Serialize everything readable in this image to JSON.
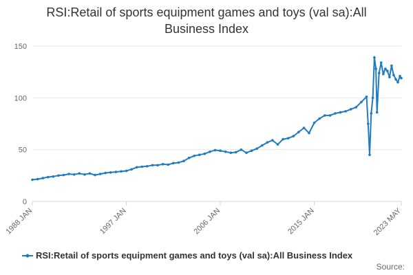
{
  "chart_data": {
    "type": "line",
    "title": "RSI:Retail of sports equipment games and toys (val sa):All Business Index",
    "xlabel": "",
    "ylabel": "",
    "ylim": [
      0,
      150
    ],
    "yticks": [
      0,
      50,
      100,
      150
    ],
    "xlim": [
      1988.0,
      2023.33
    ],
    "xticks": [
      {
        "label": "1988 JAN",
        "value": 1988.0
      },
      {
        "label": "1997 JAN",
        "value": 1997.0
      },
      {
        "label": "2006 JAN",
        "value": 2006.0
      },
      {
        "label": "2015 JAN",
        "value": 2015.0
      },
      {
        "label": "2023 MAY",
        "value": 2023.33
      }
    ],
    "color": "#1f7bc1",
    "grid": true,
    "legend_position": "bottom",
    "series": [
      {
        "name": "RSI:Retail of sports equipment games and toys (val sa):All Business Index",
        "points": [
          [
            1988.0,
            21
          ],
          [
            1988.5,
            21.5
          ],
          [
            1989.0,
            22.5
          ],
          [
            1989.5,
            23.5
          ],
          [
            1990.0,
            24
          ],
          [
            1990.5,
            25
          ],
          [
            1991.0,
            25.5
          ],
          [
            1991.5,
            26.5
          ],
          [
            1992.0,
            26
          ],
          [
            1992.5,
            27
          ],
          [
            1993.0,
            26
          ],
          [
            1993.5,
            27
          ],
          [
            1994.0,
            25.5
          ],
          [
            1994.5,
            26.5
          ],
          [
            1995.0,
            27.5
          ],
          [
            1995.5,
            28
          ],
          [
            1996.0,
            28.5
          ],
          [
            1996.5,
            29
          ],
          [
            1997.0,
            29.5
          ],
          [
            1997.5,
            31
          ],
          [
            1998.0,
            33
          ],
          [
            1998.5,
            33.5
          ],
          [
            1999.0,
            34
          ],
          [
            1999.5,
            35
          ],
          [
            2000.0,
            35
          ],
          [
            2000.5,
            36
          ],
          [
            2001.0,
            35.5
          ],
          [
            2001.5,
            37
          ],
          [
            2002.0,
            37.5
          ],
          [
            2002.5,
            39
          ],
          [
            2003.0,
            42
          ],
          [
            2003.5,
            44
          ],
          [
            2004.0,
            45
          ],
          [
            2004.5,
            46
          ],
          [
            2005.0,
            48
          ],
          [
            2005.5,
            49.5
          ],
          [
            2006.0,
            49
          ],
          [
            2006.5,
            48
          ],
          [
            2007.0,
            47
          ],
          [
            2007.5,
            47.5
          ],
          [
            2008.0,
            50
          ],
          [
            2008.5,
            47
          ],
          [
            2009.0,
            49
          ],
          [
            2009.5,
            51
          ],
          [
            2010.0,
            54
          ],
          [
            2010.5,
            57
          ],
          [
            2011.0,
            59
          ],
          [
            2011.5,
            55
          ],
          [
            2012.0,
            60
          ],
          [
            2012.5,
            61
          ],
          [
            2013.0,
            63
          ],
          [
            2013.5,
            67
          ],
          [
            2014.0,
            71
          ],
          [
            2014.5,
            66
          ],
          [
            2015.0,
            76
          ],
          [
            2015.5,
            80
          ],
          [
            2016.0,
            83
          ],
          [
            2016.5,
            83
          ],
          [
            2017.0,
            85
          ],
          [
            2017.5,
            86
          ],
          [
            2018.0,
            87
          ],
          [
            2018.5,
            89
          ],
          [
            2019.0,
            91
          ],
          [
            2019.5,
            96
          ],
          [
            2020.0,
            101
          ],
          [
            2020.15,
            75
          ],
          [
            2020.3,
            45
          ],
          [
            2020.45,
            85
          ],
          [
            2020.6,
            100
          ],
          [
            2020.75,
            139
          ],
          [
            2020.9,
            128
          ],
          [
            2021.0,
            86
          ],
          [
            2021.2,
            124
          ],
          [
            2021.4,
            134
          ],
          [
            2021.6,
            123
          ],
          [
            2021.8,
            128
          ],
          [
            2022.0,
            126
          ],
          [
            2022.2,
            120
          ],
          [
            2022.4,
            131
          ],
          [
            2022.6,
            122
          ],
          [
            2022.8,
            118
          ],
          [
            2023.0,
            115
          ],
          [
            2023.2,
            121
          ],
          [
            2023.33,
            119
          ]
        ]
      }
    ]
  },
  "legend": {
    "label": "RSI:Retail of sports equipment games and toys (val sa):All Business Index"
  },
  "source": {
    "label": "Source:"
  }
}
